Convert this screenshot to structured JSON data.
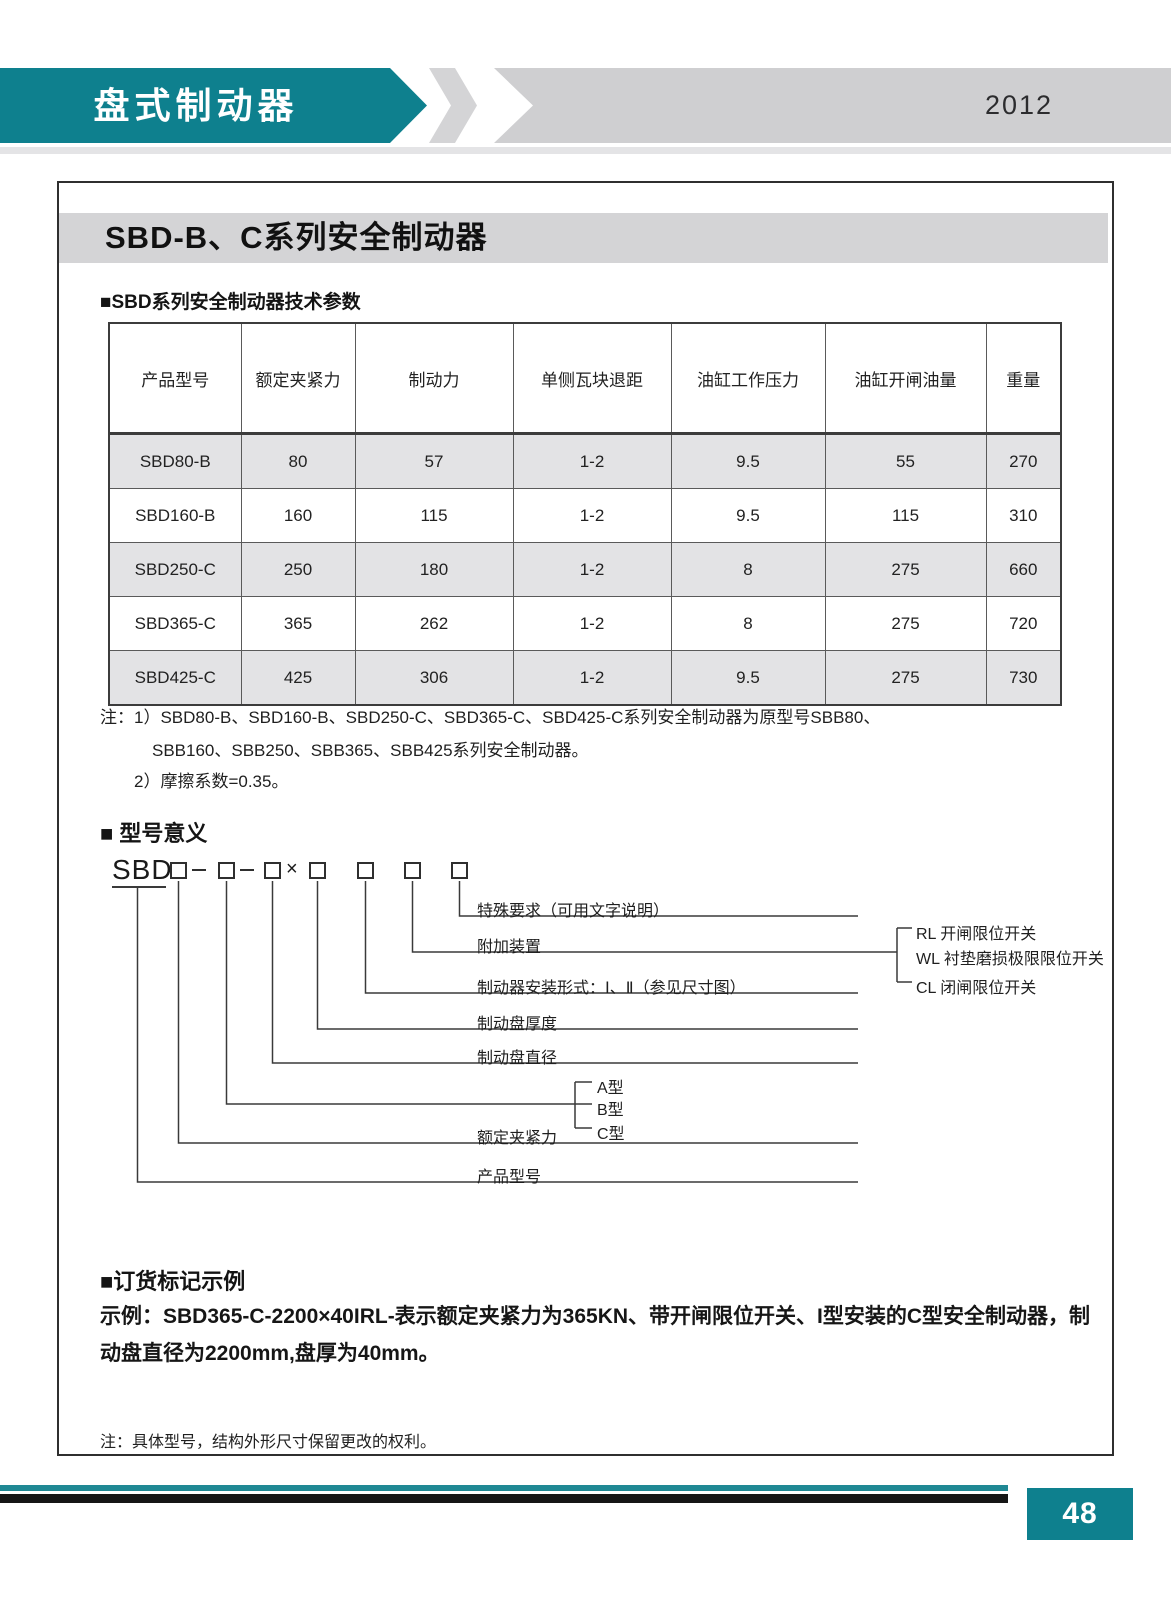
{
  "header": {
    "banner_title": "盘式制动器",
    "year": "2012"
  },
  "page": {
    "title": "SBD-B、C系列安全制动器",
    "section_params_title": "■SBD系列安全制动器技术参数",
    "table": {
      "columns": [
        "产品型号",
        "额定夹紧力",
        "制动力",
        "单侧瓦块退距",
        "油缸工作压力",
        "油缸开闸油量",
        "重量"
      ],
      "rows": [
        [
          "SBD80-B",
          "80",
          "57",
          "1-2",
          "9.5",
          "55",
          "270"
        ],
        [
          "SBD160-B",
          "160",
          "115",
          "1-2",
          "9.5",
          "115",
          "310"
        ],
        [
          "SBD250-C",
          "250",
          "180",
          "1-2",
          "8",
          "275",
          "660"
        ],
        [
          "SBD365-C",
          "365",
          "262",
          "1-2",
          "8",
          "275",
          "720"
        ],
        [
          "SBD425-C",
          "425",
          "306",
          "1-2",
          "9.5",
          "275",
          "730"
        ]
      ]
    },
    "table_notes": {
      "line1": "注：1）SBD80-B、SBD160-B、SBD250-C、SBD365-C、SBD425-C系列安全制动器为原型号SBB80、",
      "line2": "SBB160、SBB250、SBB365、SBB425系列安全制动器。",
      "line3": "2）摩擦系数=0.35。"
    },
    "section_model_title": "■ 型号意义",
    "model_diagram": {
      "prefix": "SBD",
      "sep1": "×",
      "labels": {
        "special": "特殊要求（可用文字说明）",
        "attachment": "附加装置",
        "mounting": "制动器安装形式：Ⅰ、Ⅱ（参见尺寸图）",
        "disc_thickness": "制动盘厚度",
        "disc_diameter": "制动盘直径",
        "clamping_force": "额定夹紧力",
        "product_model": "产品型号",
        "type_a": "A型",
        "type_b": "B型",
        "type_c": "C型",
        "rl": "RL 开闸限位开关",
        "wl": "WL 衬垫磨损极限限位开关",
        "cl": "CL 闭闸限位开关"
      }
    },
    "section_order_title": "■订货标记示例",
    "order_example_line1": "示例：SBD365-C-2200×40IRL-表示额定夹紧力为365KN、带开闸限位开关、I型安装的C型安全制动器，制",
    "order_example_line2": "动盘直径为2200mm,盘厚为40mm。",
    "bottom_note": "注：具体型号，结构外形尺寸保留更改的权利。"
  },
  "footer": {
    "page_number": "48"
  },
  "colors": {
    "accent_teal": "#0e808e",
    "band_gray": "#cfcfd1",
    "row_gray": "#e3e3e5",
    "title_band_gray": "#d4d4d6"
  }
}
